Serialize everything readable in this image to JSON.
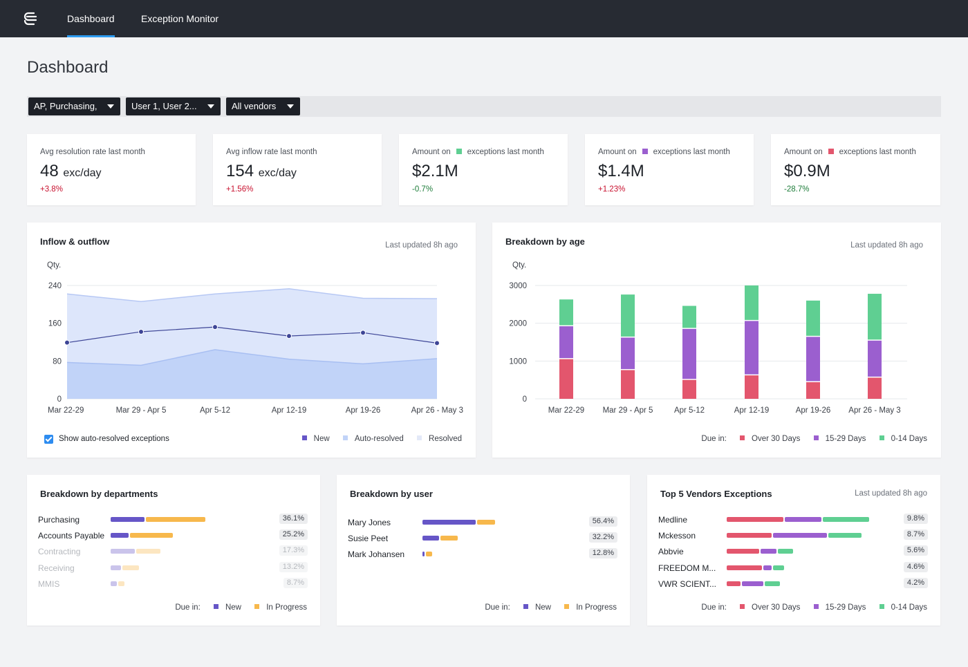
{
  "nav": {
    "tabs": [
      {
        "label": "Dashboard",
        "active": true
      },
      {
        "label": "Exception Monitor",
        "active": false
      }
    ]
  },
  "page": {
    "title": "Dashboard"
  },
  "filters": [
    {
      "label": "AP, Purchasing,"
    },
    {
      "label": "User 1, User 2..."
    },
    {
      "label": "All vendors"
    }
  ],
  "colors": {
    "green": "#5fcf92",
    "purple": "#9b5fcf",
    "red": "#e3566d",
    "new": "#6656c7",
    "in_progress": "#f7b84c",
    "area_auto": "#c1d3f8",
    "area_resolved": "#dde6fb",
    "line": "#3d4596"
  },
  "kpis": [
    {
      "label": "Avg resolution rate last month",
      "value": "48",
      "unit": "exc/day",
      "delta": "+3.8%"
    },
    {
      "label": "Avg inflow rate last month",
      "value": "154",
      "unit": "exc/day",
      "delta": "+1.56%"
    },
    {
      "label_pre": "Amount on",
      "label_post": "exceptions last month",
      "value": "$2.1M",
      "delta": "-0.7%"
    },
    {
      "label_pre": "Amount on",
      "label_post": "exceptions last month",
      "value": "$1.4M",
      "delta": "+1.23%"
    },
    {
      "label_pre": "Amount on",
      "label_post": "exceptions last month",
      "value": "$0.9M",
      "delta": "-28.7%"
    }
  ],
  "inflow": {
    "title": "Inflow & outflow",
    "updated": "Last updated 8h ago",
    "checkbox_label": "Show auto-resolved exceptions",
    "legend": [
      "New",
      "Auto-resolved",
      "Resolved"
    ]
  },
  "age": {
    "title": "Breakdown by age",
    "updated": "Last updated 8h ago",
    "legend_prefix": "Due in:",
    "legend": [
      "Over 30 Days",
      "15-29 Days",
      "0-14 Days"
    ]
  },
  "chart_data": [
    {
      "type": "area",
      "title": "Inflow & outflow",
      "ylabel": "Qty.",
      "ylim": [
        0,
        240
      ],
      "yticks": [
        0,
        80,
        160,
        240
      ],
      "categories": [
        "Mar 22-29",
        "Mar 29 - Apr 5",
        "Apr 5-12",
        "Apr 12-19",
        "Apr 19-26",
        "Apr 26 - May 3"
      ],
      "series": [
        {
          "name": "Resolved",
          "values": [
            222,
            206,
            222,
            233,
            213,
            212
          ]
        },
        {
          "name": "Auto-resolved",
          "values": [
            77,
            71,
            104,
            84,
            74,
            85
          ]
        },
        {
          "name": "New",
          "values": [
            119,
            142,
            152,
            133,
            140,
            118
          ]
        }
      ]
    },
    {
      "type": "bar",
      "stacked": true,
      "title": "Breakdown by age",
      "ylabel": "Qty.",
      "ylim": [
        0,
        3000
      ],
      "yticks": [
        0,
        1000,
        2000,
        3000
      ],
      "categories": [
        "Mar 22-29",
        "Mar 29 - Apr 5",
        "Apr 5-12",
        "Apr 12-19",
        "Apr 19-26",
        "Apr 26 - May 3"
      ],
      "series": [
        {
          "name": "Over 30 Days",
          "values": [
            1050,
            760,
            500,
            620,
            440,
            560
          ]
        },
        {
          "name": "15-29 Days",
          "values": [
            870,
            860,
            1350,
            1440,
            1200,
            980
          ]
        },
        {
          "name": "0-14 Days",
          "values": [
            710,
            1140,
            610,
            940,
            960,
            1240
          ]
        }
      ]
    }
  ],
  "departments": {
    "title": "Breakdown by departments",
    "legend_prefix": "Due in:",
    "legend": [
      "New",
      "In Progress"
    ],
    "rows": [
      {
        "name": "Purchasing",
        "pct": "36.1%",
        "new": 0.365,
        "progress": 0.635,
        "total": 1.0,
        "dim": false
      },
      {
        "name": "Accounts Payable",
        "pct": "25.2%",
        "new": 0.3,
        "progress": 0.7,
        "total": 0.66,
        "dim": false
      },
      {
        "name": "Contracting",
        "pct": "17.3%",
        "new": 0.5,
        "progress": 0.5,
        "total": 0.53,
        "dim": true
      },
      {
        "name": "Receiving",
        "pct": "13.2%",
        "new": 0.4,
        "progress": 0.6,
        "total": 0.31,
        "dim": true
      },
      {
        "name": "MMIS",
        "pct": "8.7%",
        "new": 0.5,
        "progress": 0.5,
        "total": 0.155,
        "dim": true
      }
    ]
  },
  "users": {
    "title": "Breakdown by user",
    "legend_prefix": "Due in:",
    "legend": [
      "New",
      "In Progress"
    ],
    "rows": [
      {
        "name": "Mary Jones",
        "pct": "56.4%",
        "new": 0.74,
        "progress": 0.26,
        "total": 1.0
      },
      {
        "name": "Susie Peet",
        "pct": "32.2%",
        "new": 0.49,
        "progress": 0.51,
        "total": 0.5
      },
      {
        "name": "Mark Johansen",
        "pct": "12.8%",
        "new": 0.3,
        "progress": 0.7,
        "total": 0.15
      }
    ]
  },
  "vendors": {
    "title": "Top 5 Vendors Exceptions",
    "updated": "Last updated 8h ago",
    "legend_prefix": "Due in:",
    "legend": [
      "Over 30 Days",
      "15-29 Days",
      "0-14 Days"
    ],
    "rows": [
      {
        "name": "Medline",
        "pct": "9.8%",
        "over30": 0.405,
        "d15": 0.265,
        "d0": 0.33,
        "total": 1.0
      },
      {
        "name": "Mckesson",
        "pct": "8.7%",
        "over30": 0.34,
        "d15": 0.41,
        "d0": 0.25,
        "total": 0.945
      },
      {
        "name": "Abbvie",
        "pct": "5.6%",
        "over30": 0.5,
        "d15": 0.26,
        "d0": 0.24,
        "total": 0.47
      },
      {
        "name": "FREEDOM M...",
        "pct": "4.6%",
        "over30": 0.62,
        "d15": 0.16,
        "d0": 0.22,
        "total": 0.41
      },
      {
        "name": "VWR SCIENT...",
        "pct": "4.2%",
        "over30": 0.28,
        "d15": 0.42,
        "d0": 0.3,
        "total": 0.38
      }
    ]
  }
}
